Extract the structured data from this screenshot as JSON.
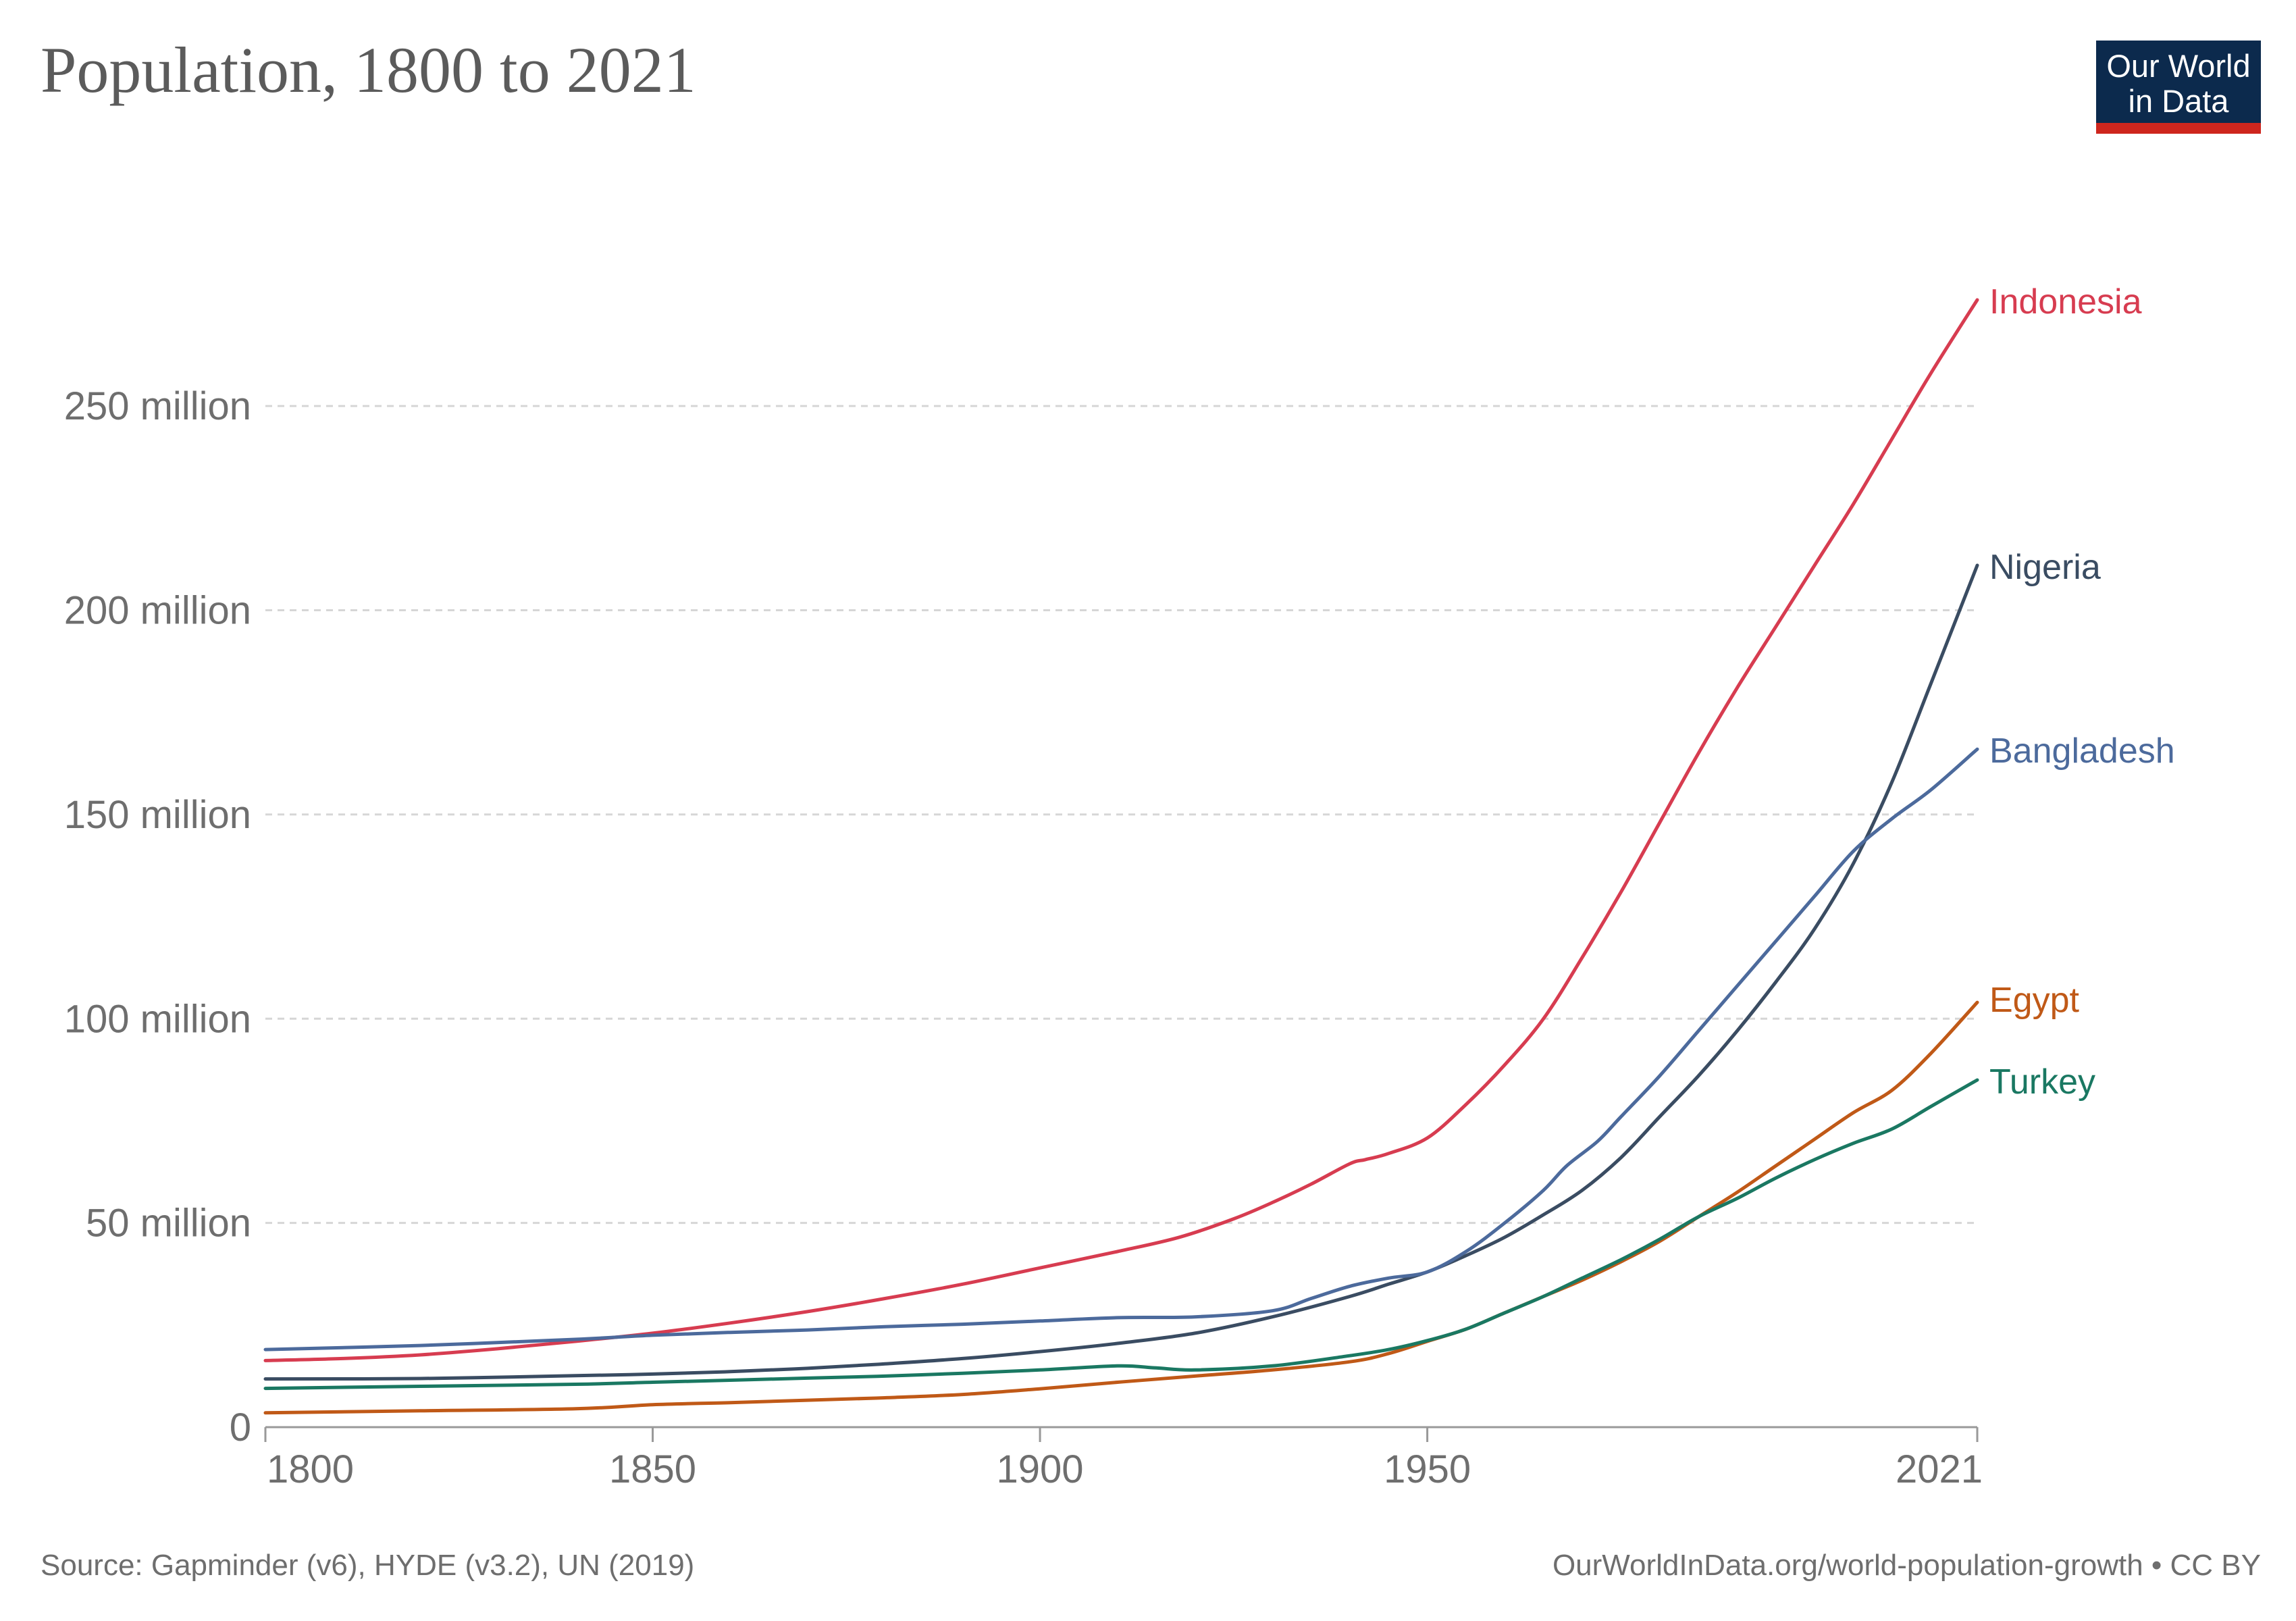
{
  "header": {
    "title": "Population, 1800 to 2021",
    "logo_line1": "Our World",
    "logo_line2": "in Data"
  },
  "footer": {
    "source": "Source: Gapminder (v6), HYDE (v3.2), UN (2019)",
    "credit": "OurWorldInData.org/world-population-growth • CC BY"
  },
  "colors": {
    "logo_bg": "#0c2a4d",
    "logo_accent": "#ce261e"
  },
  "chart_data": {
    "type": "line",
    "title": "Population, 1800 to 2021",
    "xlabel": "",
    "ylabel": "",
    "xlim": [
      1800,
      2021
    ],
    "ylim": [
      0,
      275000000
    ],
    "x_ticks": [
      1800,
      1850,
      1900,
      1950,
      2021
    ],
    "y_ticks": [
      {
        "value": 0,
        "label": "0"
      },
      {
        "value": 50000000,
        "label": "50 million"
      },
      {
        "value": 100000000,
        "label": "100 million"
      },
      {
        "value": 150000000,
        "label": "150 million"
      },
      {
        "value": 200000000,
        "label": "200 million"
      },
      {
        "value": 250000000,
        "label": "250 million"
      }
    ],
    "grid": "horizontal dashed",
    "legend": "end-of-line labels",
    "series": [
      {
        "name": "Indonesia",
        "color": "#d73c50",
        "points": [
          [
            1800,
            16.3
          ],
          [
            1810,
            16.8
          ],
          [
            1820,
            17.7
          ],
          [
            1830,
            19.2
          ],
          [
            1840,
            21.0
          ],
          [
            1850,
            23.0
          ],
          [
            1860,
            25.5
          ],
          [
            1870,
            28.3
          ],
          [
            1880,
            31.5
          ],
          [
            1890,
            35.0
          ],
          [
            1900,
            39.0
          ],
          [
            1910,
            43.0
          ],
          [
            1918,
            46.5
          ],
          [
            1925,
            51.0
          ],
          [
            1930,
            55.0
          ],
          [
            1935,
            59.5
          ],
          [
            1940,
            64.5
          ],
          [
            1942,
            65.5
          ],
          [
            1945,
            67.0
          ],
          [
            1950,
            70.8
          ],
          [
            1955,
            79.0
          ],
          [
            1960,
            88.7
          ],
          [
            1965,
            100.0
          ],
          [
            1970,
            115.0
          ],
          [
            1975,
            131.0
          ],
          [
            1980,
            148.0
          ],
          [
            1985,
            165.0
          ],
          [
            1990,
            181.0
          ],
          [
            1995,
            196.0
          ],
          [
            2000,
            211.0
          ],
          [
            2005,
            226.0
          ],
          [
            2010,
            242.0
          ],
          [
            2015,
            258.0
          ],
          [
            2021,
            276.0
          ]
        ]
      },
      {
        "name": "Nigeria",
        "color": "#3a4c62",
        "points": [
          [
            1800,
            11.8
          ],
          [
            1820,
            11.9
          ],
          [
            1840,
            12.6
          ],
          [
            1850,
            13.0
          ],
          [
            1860,
            13.6
          ],
          [
            1870,
            14.4
          ],
          [
            1880,
            15.5
          ],
          [
            1890,
            16.8
          ],
          [
            1900,
            18.5
          ],
          [
            1910,
            20.5
          ],
          [
            1920,
            23.0
          ],
          [
            1930,
            27.0
          ],
          [
            1940,
            32.0
          ],
          [
            1945,
            35.0
          ],
          [
            1950,
            38.0
          ],
          [
            1955,
            42.0
          ],
          [
            1960,
            46.5
          ],
          [
            1965,
            52.0
          ],
          [
            1970,
            58.0
          ],
          [
            1975,
            66.0
          ],
          [
            1980,
            76.0
          ],
          [
            1985,
            86.0
          ],
          [
            1990,
            97.0
          ],
          [
            1995,
            109.0
          ],
          [
            2000,
            122.0
          ],
          [
            2005,
            138.0
          ],
          [
            2010,
            158.0
          ],
          [
            2015,
            182.0
          ],
          [
            2021,
            211.0
          ]
        ]
      },
      {
        "name": "Bangladesh",
        "color": "#4c6a9c",
        "points": [
          [
            1800,
            19.0
          ],
          [
            1820,
            20.0
          ],
          [
            1840,
            21.5
          ],
          [
            1850,
            22.5
          ],
          [
            1860,
            23.2
          ],
          [
            1870,
            23.8
          ],
          [
            1880,
            24.6
          ],
          [
            1890,
            25.2
          ],
          [
            1900,
            26.0
          ],
          [
            1910,
            26.8
          ],
          [
            1920,
            27.0
          ],
          [
            1930,
            28.5
          ],
          [
            1935,
            31.5
          ],
          [
            1940,
            34.5
          ],
          [
            1945,
            36.5
          ],
          [
            1950,
            38.0
          ],
          [
            1955,
            43.0
          ],
          [
            1960,
            50.0
          ],
          [
            1965,
            58.0
          ],
          [
            1968,
            64.0
          ],
          [
            1972,
            70.0
          ],
          [
            1975,
            76.0
          ],
          [
            1980,
            86.0
          ],
          [
            1985,
            97.0
          ],
          [
            1990,
            108.0
          ],
          [
            1995,
            119.0
          ],
          [
            2000,
            130.0
          ],
          [
            2005,
            141.0
          ],
          [
            2010,
            149.0
          ],
          [
            2015,
            156.0
          ],
          [
            2021,
            166.0
          ]
        ]
      },
      {
        "name": "Egypt",
        "color": "#c05917",
        "points": [
          [
            1800,
            3.5
          ],
          [
            1820,
            4.0
          ],
          [
            1840,
            4.5
          ],
          [
            1850,
            5.5
          ],
          [
            1860,
            6.0
          ],
          [
            1870,
            6.6
          ],
          [
            1880,
            7.2
          ],
          [
            1890,
            8.0
          ],
          [
            1900,
            9.4
          ],
          [
            1910,
            11.0
          ],
          [
            1920,
            12.5
          ],
          [
            1930,
            14.0
          ],
          [
            1940,
            16.0
          ],
          [
            1945,
            18.0
          ],
          [
            1950,
            21.0
          ],
          [
            1955,
            24.0
          ],
          [
            1960,
            28.0
          ],
          [
            1965,
            32.0
          ],
          [
            1970,
            36.0
          ],
          [
            1975,
            40.5
          ],
          [
            1980,
            45.5
          ],
          [
            1985,
            51.5
          ],
          [
            1990,
            57.5
          ],
          [
            1995,
            64.0
          ],
          [
            2000,
            70.5
          ],
          [
            2005,
            77.0
          ],
          [
            2010,
            82.5
          ],
          [
            2015,
            91.5
          ],
          [
            2021,
            104.0
          ]
        ]
      },
      {
        "name": "Turkey",
        "color": "#1a7862",
        "points": [
          [
            1800,
            9.5
          ],
          [
            1820,
            10.0
          ],
          [
            1840,
            10.5
          ],
          [
            1850,
            11.0
          ],
          [
            1860,
            11.5
          ],
          [
            1870,
            12.0
          ],
          [
            1880,
            12.5
          ],
          [
            1890,
            13.2
          ],
          [
            1900,
            14.0
          ],
          [
            1910,
            15.0
          ],
          [
            1915,
            14.5
          ],
          [
            1920,
            14.0
          ],
          [
            1930,
            15.0
          ],
          [
            1940,
            17.5
          ],
          [
            1945,
            19.0
          ],
          [
            1950,
            21.2
          ],
          [
            1955,
            24.0
          ],
          [
            1960,
            28.0
          ],
          [
            1965,
            32.0
          ],
          [
            1970,
            36.5
          ],
          [
            1975,
            41.0
          ],
          [
            1980,
            46.0
          ],
          [
            1985,
            51.5
          ],
          [
            1990,
            56.0
          ],
          [
            1995,
            61.0
          ],
          [
            2000,
            65.5
          ],
          [
            2005,
            69.5
          ],
          [
            2010,
            73.0
          ],
          [
            2015,
            78.5
          ],
          [
            2021,
            85.0
          ]
        ]
      }
    ]
  }
}
